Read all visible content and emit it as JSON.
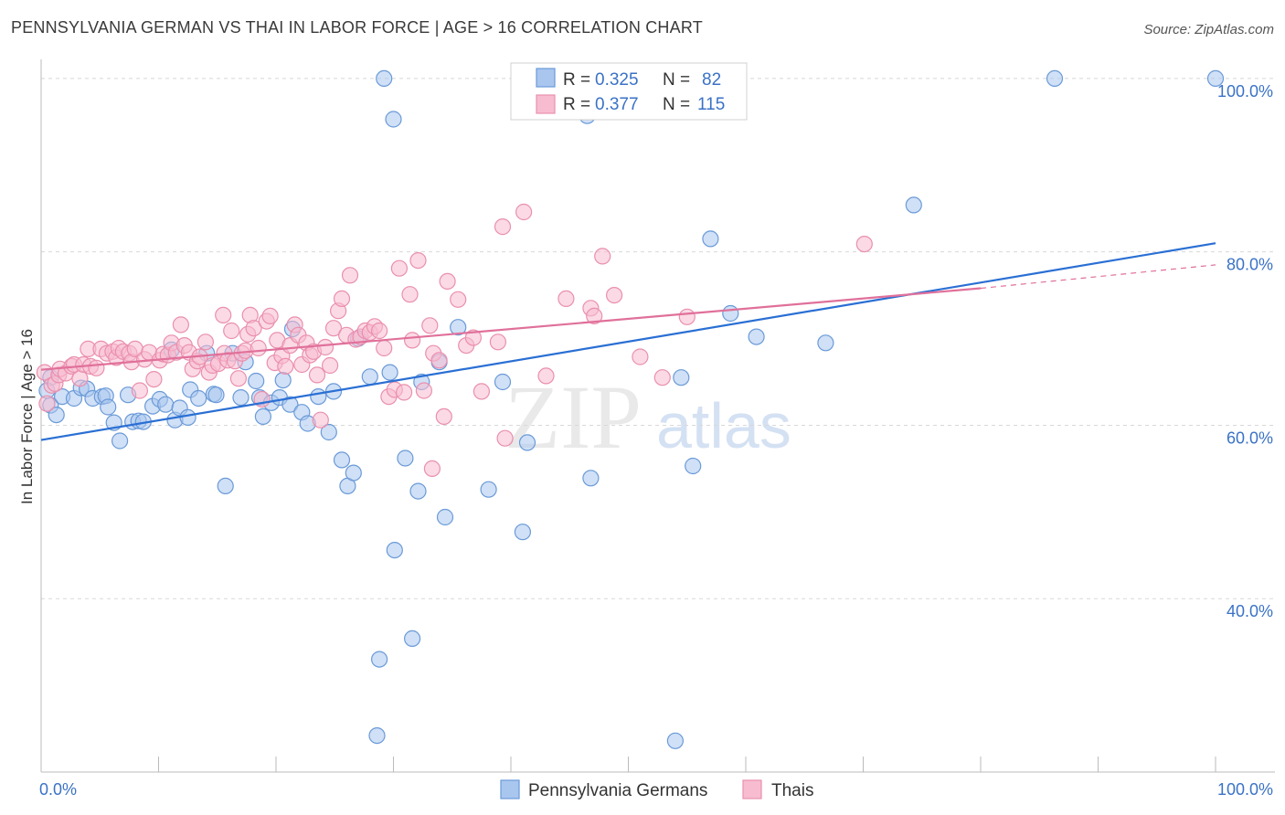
{
  "title": "PENNSYLVANIA GERMAN VS THAI IN LABOR FORCE | AGE > 16 CORRELATION CHART",
  "source": "Source: ZipAtlas.com",
  "watermark": {
    "zip": "ZIP",
    "atlas": "atlas"
  },
  "colors": {
    "blue_fill": "#a9c6ef",
    "blue_stroke": "#6a9ad8",
    "blue_line": "#2a6fd4",
    "pink_fill": "#f7bcd0",
    "pink_stroke": "#ea8fae",
    "pink_line": "#e0709a",
    "grid": "#d8d8d8",
    "tick_text": "#3a72c6"
  },
  "legend_stats": [
    {
      "r_label": "R =",
      "r_value": "0.325",
      "n_label": "N =",
      "n_value": "82",
      "swatch": "blue"
    },
    {
      "r_label": "R =",
      "r_value": "0.377",
      "n_label": "N =",
      "n_value": "115",
      "swatch": "pink"
    }
  ],
  "chart_data": {
    "type": "scatter",
    "title": "PENNSYLVANIA GERMAN VS THAI IN LABOR FORCE | AGE > 16 CORRELATION CHART",
    "xlabel": "",
    "ylabel": "In Labor Force | Age > 16",
    "x_tick_labels": [
      "0.0%",
      "100.0%"
    ],
    "y_tick_labels": [
      "100.0%",
      "80.0%",
      "60.0%",
      "40.0%"
    ],
    "y_ticks": [
      100,
      80,
      60,
      40
    ],
    "xlim": [
      0,
      100
    ],
    "ylim": [
      20,
      102.2
    ],
    "grid": true,
    "legend_position": "bottom",
    "series": [
      {
        "name": "Pennsylvania Germans",
        "color": "blue",
        "trend": {
          "x": [
            0,
            100
          ],
          "y": [
            58.3,
            81.0
          ],
          "dashed_from": null
        },
        "points": [
          [
            0.8,
            65.5
          ],
          [
            0.8,
            62.3
          ],
          [
            1.3,
            61.2
          ],
          [
            1.8,
            63.3
          ],
          [
            2.8,
            63.1
          ],
          [
            3.4,
            64.3
          ],
          [
            3.9,
            64.2
          ],
          [
            4.4,
            63.1
          ],
          [
            5.2,
            63.3
          ],
          [
            5.5,
            63.4
          ],
          [
            5.7,
            62.1
          ],
          [
            6.2,
            60.3
          ],
          [
            6.7,
            58.2
          ],
          [
            7.4,
            63.5
          ],
          [
            7.8,
            60.4
          ],
          [
            8.3,
            60.5
          ],
          [
            8.7,
            60.4
          ],
          [
            9.5,
            62.2
          ],
          [
            10.1,
            63.0
          ],
          [
            10.6,
            62.4
          ],
          [
            11.1,
            68.7
          ],
          [
            11.4,
            60.6
          ],
          [
            11.8,
            62.0
          ],
          [
            12.5,
            60.9
          ],
          [
            12.7,
            64.1
          ],
          [
            13.4,
            63.1
          ],
          [
            14.1,
            68.3
          ],
          [
            14.7,
            63.6
          ],
          [
            14.9,
            63.5
          ],
          [
            15.7,
            53.0
          ],
          [
            16.3,
            68.3
          ],
          [
            17.0,
            63.2
          ],
          [
            17.4,
            67.3
          ],
          [
            18.3,
            65.1
          ],
          [
            18.6,
            63.2
          ],
          [
            18.9,
            61.0
          ],
          [
            19.6,
            62.6
          ],
          [
            20.3,
            63.2
          ],
          [
            20.6,
            65.2
          ],
          [
            21.2,
            62.4
          ],
          [
            21.4,
            71.1
          ],
          [
            22.2,
            61.5
          ],
          [
            22.7,
            60.2
          ],
          [
            23.6,
            63.3
          ],
          [
            24.5,
            59.2
          ],
          [
            24.9,
            63.9
          ],
          [
            25.6,
            56.0
          ],
          [
            26.1,
            53.0
          ],
          [
            26.6,
            54.5
          ],
          [
            27.0,
            70.0
          ],
          [
            28.0,
            65.6
          ],
          [
            28.6,
            24.2
          ],
          [
            28.8,
            33.0
          ],
          [
            29.2,
            100.0
          ],
          [
            29.7,
            66.1
          ],
          [
            30.0,
            95.3
          ],
          [
            30.1,
            45.6
          ],
          [
            31.0,
            56.2
          ],
          [
            31.6,
            35.4
          ],
          [
            32.1,
            52.4
          ],
          [
            32.4,
            65.0
          ],
          [
            33.9,
            67.3
          ],
          [
            34.4,
            49.4
          ],
          [
            35.5,
            71.3
          ],
          [
            38.1,
            52.6
          ],
          [
            39.3,
            65.0
          ],
          [
            41.0,
            47.7
          ],
          [
            41.4,
            58.0
          ],
          [
            43.5,
            100.0
          ],
          [
            46.5,
            95.7
          ],
          [
            46.8,
            53.9
          ],
          [
            54.0,
            23.6
          ],
          [
            54.5,
            65.5
          ],
          [
            55.5,
            55.3
          ],
          [
            57.0,
            81.5
          ],
          [
            58.7,
            72.9
          ],
          [
            60.9,
            70.2
          ],
          [
            66.8,
            69.5
          ],
          [
            74.3,
            85.4
          ],
          [
            86.3,
            100.0
          ],
          [
            100.0,
            100.0
          ],
          [
            0.5,
            64.0
          ]
        ]
      },
      {
        "name": "Thais",
        "color": "pink",
        "trend": {
          "x": [
            0,
            80,
            100
          ],
          "y": [
            66.4,
            75.8,
            78.5
          ],
          "dashed_from": 80
        },
        "points": [
          [
            0.3,
            66.1
          ],
          [
            0.5,
            62.5
          ],
          [
            0.9,
            64.6
          ],
          [
            1.2,
            64.8
          ],
          [
            1.5,
            65.8
          ],
          [
            1.6,
            66.5
          ],
          [
            2.1,
            66.0
          ],
          [
            2.6,
            66.8
          ],
          [
            2.8,
            67.0
          ],
          [
            3.3,
            65.4
          ],
          [
            3.6,
            67.0
          ],
          [
            4.0,
            68.8
          ],
          [
            4.2,
            66.8
          ],
          [
            4.7,
            66.6
          ],
          [
            5.1,
            68.8
          ],
          [
            5.6,
            68.3
          ],
          [
            6.1,
            68.5
          ],
          [
            6.4,
            67.8
          ],
          [
            6.6,
            68.9
          ],
          [
            7.0,
            68.5
          ],
          [
            7.5,
            68.3
          ],
          [
            7.7,
            67.3
          ],
          [
            8.0,
            68.8
          ],
          [
            8.4,
            64.0
          ],
          [
            8.8,
            67.6
          ],
          [
            9.2,
            68.4
          ],
          [
            9.6,
            65.3
          ],
          [
            10.1,
            67.5
          ],
          [
            10.4,
            68.2
          ],
          [
            10.8,
            68.1
          ],
          [
            11.1,
            69.5
          ],
          [
            11.5,
            68.4
          ],
          [
            11.9,
            71.6
          ],
          [
            12.2,
            69.2
          ],
          [
            12.6,
            68.4
          ],
          [
            12.9,
            66.5
          ],
          [
            13.3,
            67.4
          ],
          [
            13.5,
            67.9
          ],
          [
            14.0,
            69.6
          ],
          [
            14.3,
            66.1
          ],
          [
            14.6,
            66.9
          ],
          [
            15.1,
            67.1
          ],
          [
            15.5,
            72.7
          ],
          [
            15.6,
            68.3
          ],
          [
            15.9,
            67.5
          ],
          [
            16.2,
            70.9
          ],
          [
            16.5,
            67.4
          ],
          [
            16.8,
            65.4
          ],
          [
            17.1,
            68.3
          ],
          [
            17.4,
            68.6
          ],
          [
            17.6,
            70.5
          ],
          [
            17.8,
            72.7
          ],
          [
            18.1,
            71.2
          ],
          [
            18.5,
            68.9
          ],
          [
            18.8,
            63.0
          ],
          [
            19.2,
            72.0
          ],
          [
            19.5,
            72.6
          ],
          [
            19.9,
            67.2
          ],
          [
            20.1,
            69.8
          ],
          [
            20.5,
            68.0
          ],
          [
            20.8,
            66.8
          ],
          [
            21.2,
            69.2
          ],
          [
            21.6,
            71.6
          ],
          [
            21.9,
            70.4
          ],
          [
            22.2,
            67.0
          ],
          [
            22.6,
            69.5
          ],
          [
            22.9,
            68.1
          ],
          [
            23.2,
            68.5
          ],
          [
            23.5,
            65.8
          ],
          [
            23.8,
            60.6
          ],
          [
            24.2,
            69.0
          ],
          [
            24.6,
            66.9
          ],
          [
            24.9,
            71.2
          ],
          [
            25.3,
            73.2
          ],
          [
            25.6,
            74.6
          ],
          [
            26.0,
            70.4
          ],
          [
            26.3,
            77.3
          ],
          [
            26.8,
            69.9
          ],
          [
            27.2,
            70.2
          ],
          [
            27.6,
            70.9
          ],
          [
            28.0,
            70.7
          ],
          [
            28.4,
            71.4
          ],
          [
            28.8,
            70.9
          ],
          [
            29.2,
            68.9
          ],
          [
            29.6,
            63.3
          ],
          [
            30.1,
            64.1
          ],
          [
            30.5,
            78.1
          ],
          [
            30.9,
            63.8
          ],
          [
            31.4,
            75.1
          ],
          [
            31.6,
            69.8
          ],
          [
            32.1,
            79.0
          ],
          [
            32.6,
            64.0
          ],
          [
            33.1,
            71.5
          ],
          [
            33.4,
            68.3
          ],
          [
            33.9,
            67.5
          ],
          [
            34.3,
            61.0
          ],
          [
            34.6,
            76.6
          ],
          [
            35.5,
            74.5
          ],
          [
            36.2,
            69.2
          ],
          [
            36.8,
            70.1
          ],
          [
            37.5,
            63.9
          ],
          [
            38.9,
            69.6
          ],
          [
            39.3,
            82.9
          ],
          [
            39.5,
            58.5
          ],
          [
            41.1,
            84.6
          ],
          [
            43.0,
            65.7
          ],
          [
            44.7,
            74.6
          ],
          [
            46.8,
            73.5
          ],
          [
            47.1,
            72.6
          ],
          [
            47.8,
            79.5
          ],
          [
            48.8,
            75.0
          ],
          [
            51.0,
            67.9
          ],
          [
            52.9,
            65.5
          ],
          [
            55.0,
            72.5
          ],
          [
            70.1,
            80.9
          ],
          [
            33.3,
            55.0
          ]
        ]
      }
    ]
  }
}
